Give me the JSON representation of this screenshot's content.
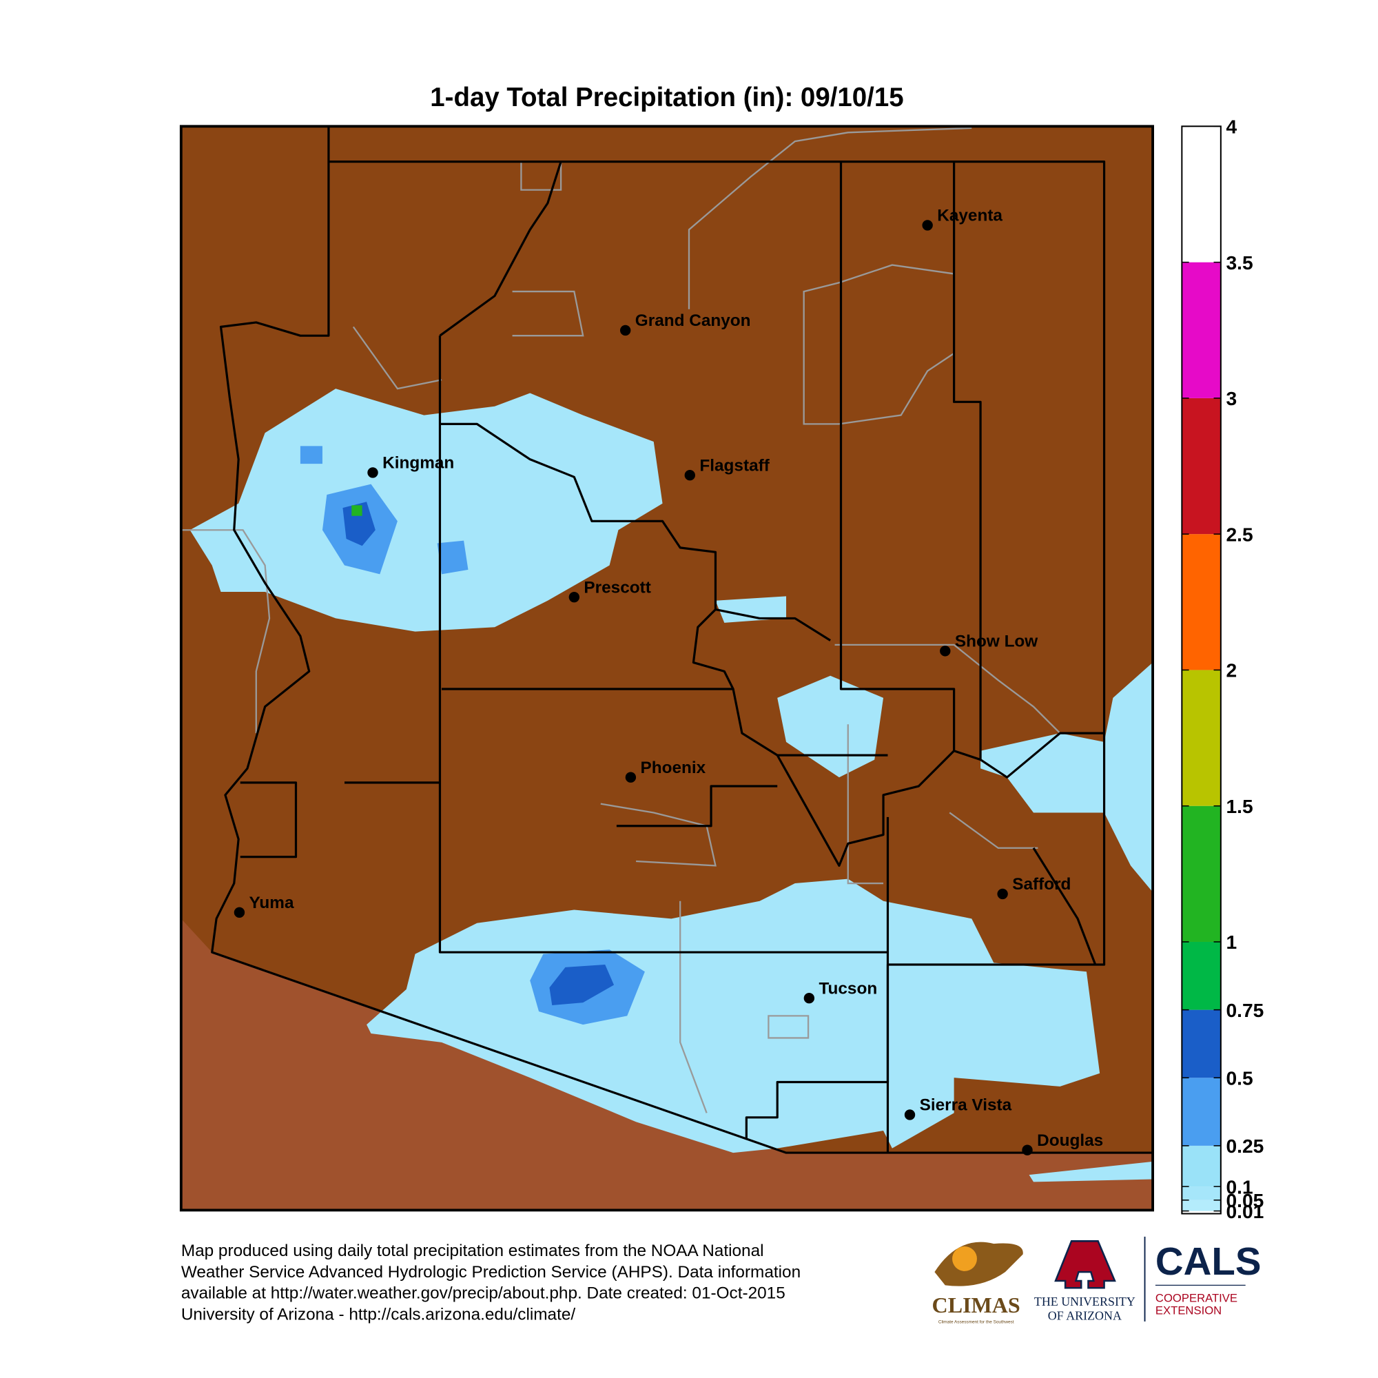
{
  "title": "1-day Total Precipitation (in): 09/10/15",
  "colorbar": {
    "ylim": [
      0,
      4
    ],
    "ticks": [
      0.01,
      0.05,
      0.1,
      0.25,
      0.5,
      0.75,
      1,
      1.5,
      2,
      2.5,
      3,
      3.5,
      4
    ],
    "colors": [
      "#b4ecfc",
      "#a6e6fa",
      "#9ae2f8",
      "#4a9ef0",
      "#1a5ec8",
      "#00b846",
      "#22b422",
      "#b8c400",
      "#ff6400",
      "#c81420",
      "#e60ac8",
      "#ffffff"
    ]
  },
  "cities": [
    "Kayenta",
    "Grand Canyon",
    "Kingman",
    "Flagstaff",
    "Prescott",
    "Show Low",
    "Phoenix",
    "Yuma",
    "Safford",
    "Tucson",
    "Sierra Vista",
    "Douglas"
  ],
  "footer": [
    "Map produced using daily total precipitation estimates from the NOAA National",
    "Weather Service Advanced Hydrologic Prediction Service (AHPS). Data information",
    "available at http://water.weather.gov/precip/about.php. Date created: 01-Oct-2015",
    "University of Arizona - http://cals.arizona.edu/climate/"
  ],
  "logos": {
    "climas": "CLIMAS",
    "climas_sub": "Climate Assessment for the Southwest",
    "ua": [
      "THE UNIVERSITY",
      "OF ARIZONA"
    ],
    "cals": "CALS",
    "cals_sub": [
      "COOPERATIVE",
      "EXTENSION"
    ]
  }
}
